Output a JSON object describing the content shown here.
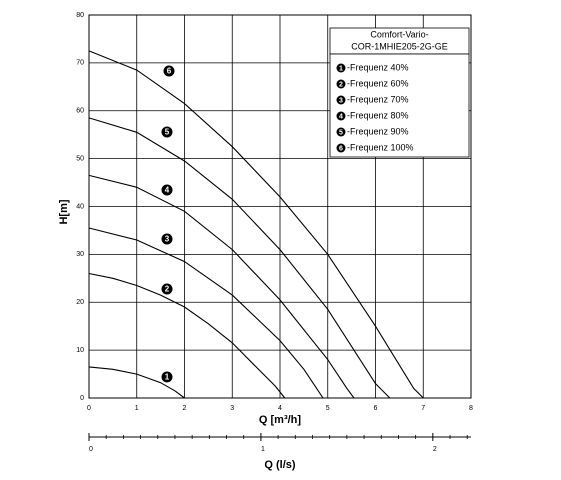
{
  "chart_data": {
    "type": "line",
    "title": [
      "Comfort-Vario-",
      "COR-1MHIE205-2G-GE"
    ],
    "x_label": "Q [m³/h]",
    "y_label": "H[m]",
    "x2_label": "Q (l/s)",
    "xlim": [
      0,
      8
    ],
    "ylim": [
      0,
      80
    ],
    "xticks": [
      0,
      1,
      2,
      3,
      4,
      5,
      6,
      7,
      8
    ],
    "yticks": [
      0,
      10,
      20,
      30,
      40,
      50,
      60,
      70,
      80
    ],
    "x2lim": [
      0,
      2.222
    ],
    "x2ticks": [
      0,
      1,
      2
    ],
    "x2minorticks": [
      0.1,
      0.2,
      0.3,
      0.4,
      0.5,
      0.6,
      0.7,
      0.8,
      0.9,
      1.1,
      1.2,
      1.3,
      1.4,
      1.5,
      1.6,
      1.7,
      1.8,
      1.9,
      2.1,
      2.2
    ],
    "grid": true,
    "color": "#000000",
    "series": [
      {
        "marker": "1",
        "name": "-Frequenz 40%",
        "x": [
          0,
          0.5,
          1,
          1.5,
          1.8,
          2.0
        ],
        "values": [
          6.5,
          6,
          5,
          3.2,
          1.5,
          0
        ]
      },
      {
        "marker": "2",
        "name": "-Frequenz 60%",
        "x": [
          0,
          0.5,
          1,
          1.5,
          2,
          2.5,
          3,
          3.5,
          3.9,
          4.1
        ],
        "values": [
          26,
          25,
          23.5,
          21.5,
          19,
          15.5,
          11.5,
          6.5,
          2.5,
          0
        ]
      },
      {
        "marker": "3",
        "name": "-Frequenz 70%",
        "x": [
          0,
          1,
          2,
          3,
          4,
          4.5,
          4.7,
          4.9
        ],
        "values": [
          35.5,
          33,
          28.5,
          21.5,
          12,
          6,
          3,
          0
        ]
      },
      {
        "marker": "4",
        "name": "-Frequenz 80%",
        "x": [
          0,
          1,
          2,
          3,
          4,
          5,
          5.4,
          5.55
        ],
        "values": [
          46.5,
          44,
          39,
          31,
          20.5,
          8,
          2,
          0
        ]
      },
      {
        "marker": "5",
        "name": "-Frequenz 90%",
        "x": [
          0,
          1,
          2,
          3,
          4,
          5,
          6,
          6.3
        ],
        "values": [
          58.5,
          55.5,
          49.5,
          41.5,
          31,
          18.5,
          3,
          0
        ]
      },
      {
        "marker": "6",
        "name": "-Frequenz 100%",
        "x": [
          0,
          1,
          2,
          3,
          4,
          5,
          6,
          6.8,
          7.0
        ],
        "values": [
          72.5,
          68.5,
          61.5,
          52.5,
          42,
          30,
          15,
          2,
          0
        ]
      }
    ]
  }
}
